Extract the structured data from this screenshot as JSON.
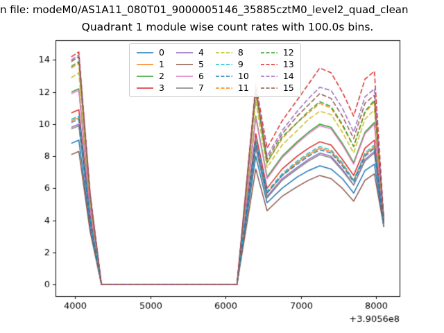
{
  "suptitle": "n file: modeM0/AS1A11_080T01_9000005146_35885cztM0_level2_quad_clean",
  "title": "Quadrant 1 module wise count rates with 100.0s bins.",
  "chart_data": {
    "type": "line",
    "title": "Quadrant 1 module wise count rates with 100.0s bins.",
    "xlabel": "",
    "ylabel": "",
    "x_offset_text": "+3.9056e8",
    "xticks": [
      4000,
      5000,
      6000,
      7000,
      8000
    ],
    "yticks": [
      0,
      2,
      4,
      6,
      8,
      10,
      12,
      14
    ],
    "xlim": [
      3740,
      8310
    ],
    "ylim": [
      -0.73,
      15.23
    ],
    "grid": false,
    "legend_position": "upper center",
    "x": [
      3950,
      4050,
      4200,
      4350,
      6150,
      6400,
      6550,
      6750,
      6950,
      7100,
      7250,
      7400,
      7550,
      7700,
      7850,
      7975,
      8100
    ],
    "series": [
      {
        "name": "0",
        "color": "#1f77b4",
        "dash": "solid",
        "values": [
          8.8,
          9.0,
          3.5,
          0,
          0,
          8.0,
          5.1,
          6.0,
          6.7,
          7.1,
          7.4,
          7.2,
          6.6,
          5.7,
          7.1,
          7.5,
          3.6
        ]
      },
      {
        "name": "1",
        "color": "#ff7f0e",
        "dash": "solid",
        "values": [
          10.2,
          10.4,
          4.1,
          0,
          0,
          9.0,
          5.7,
          6.8,
          7.6,
          8.1,
          8.5,
          8.3,
          7.5,
          6.5,
          8.1,
          8.6,
          3.7
        ]
      },
      {
        "name": "2",
        "color": "#2ca02c",
        "dash": "solid",
        "values": [
          12.0,
          12.2,
          4.8,
          0,
          0,
          10.5,
          6.7,
          8.0,
          8.9,
          9.5,
          10.0,
          9.8,
          8.8,
          7.6,
          9.5,
          10.1,
          3.9
        ]
      },
      {
        "name": "3",
        "color": "#d62728",
        "dash": "solid",
        "values": [
          10.7,
          10.9,
          4.3,
          0,
          0,
          9.4,
          6.0,
          7.2,
          8.0,
          8.5,
          8.9,
          8.7,
          7.8,
          6.8,
          8.5,
          9.0,
          3.8
        ]
      },
      {
        "name": "4",
        "color": "#9467bd",
        "dash": "solid",
        "values": [
          9.8,
          10.0,
          3.9,
          0,
          0,
          8.7,
          5.5,
          6.6,
          7.3,
          7.8,
          8.2,
          8.0,
          7.2,
          6.2,
          7.8,
          8.3,
          3.7
        ]
      },
      {
        "name": "5",
        "color": "#8c564b",
        "dash": "solid",
        "values": [
          8.1,
          8.3,
          3.3,
          0,
          0,
          7.2,
          4.6,
          5.5,
          6.1,
          6.5,
          6.8,
          6.6,
          6.0,
          5.2,
          6.5,
          6.9,
          3.6
        ]
      },
      {
        "name": "6",
        "color": "#e377c2",
        "dash": "solid",
        "values": [
          11.9,
          12.1,
          4.7,
          0,
          0,
          10.4,
          6.6,
          7.9,
          8.8,
          9.4,
          9.9,
          9.7,
          8.7,
          7.5,
          9.4,
          10.0,
          3.9
        ]
      },
      {
        "name": "7",
        "color": "#7f7f7f",
        "dash": "solid",
        "values": [
          9.7,
          9.9,
          3.9,
          0,
          0,
          8.5,
          5.4,
          6.5,
          7.2,
          7.7,
          8.1,
          7.9,
          7.1,
          6.2,
          7.7,
          8.2,
          3.7
        ]
      },
      {
        "name": "8",
        "color": "#bcbd22",
        "dash": "dashed",
        "values": [
          12.9,
          13.2,
          5.2,
          0,
          0,
          11.4,
          7.3,
          8.7,
          9.6,
          10.3,
          10.8,
          10.6,
          9.5,
          8.2,
          10.3,
          10.9,
          4.0
        ]
      },
      {
        "name": "9",
        "color": "#17becf",
        "dash": "dashed",
        "values": [
          10.3,
          10.5,
          4.1,
          0,
          0,
          9.1,
          5.8,
          6.9,
          7.7,
          8.2,
          8.6,
          8.4,
          7.6,
          6.5,
          8.2,
          8.7,
          3.7
        ]
      },
      {
        "name": "10",
        "color": "#1f77b4",
        "dash": "dashed",
        "values": [
          10.1,
          10.3,
          4.0,
          0,
          0,
          8.9,
          5.7,
          6.8,
          7.5,
          8.0,
          8.4,
          8.2,
          7.4,
          6.4,
          8.0,
          8.5,
          3.7
        ]
      },
      {
        "name": "11",
        "color": "#ff7f0e",
        "dash": "dashed",
        "values": [
          13.5,
          13.8,
          5.4,
          0,
          0,
          11.9,
          7.6,
          9.1,
          10.1,
          10.7,
          11.3,
          11.0,
          9.9,
          8.6,
          10.7,
          11.4,
          4.0
        ]
      },
      {
        "name": "12",
        "color": "#2ca02c",
        "dash": "dashed",
        "values": [
          13.6,
          13.9,
          5.5,
          0,
          0,
          12.0,
          7.6,
          9.2,
          10.1,
          10.8,
          11.4,
          11.1,
          10.0,
          8.6,
          10.8,
          11.5,
          4.0
        ]
      },
      {
        "name": "13",
        "color": "#d62728",
        "dash": "dashed",
        "values": [
          14.2,
          14.5,
          5.7,
          0,
          0,
          12.5,
          8.5,
          10.2,
          11.5,
          12.5,
          13.5,
          13.2,
          12.0,
          10.5,
          12.8,
          13.3,
          4.1
        ]
      },
      {
        "name": "14",
        "color": "#9467bd",
        "dash": "dashed",
        "values": [
          14.0,
          14.3,
          5.6,
          0,
          0,
          12.3,
          8.0,
          9.6,
          10.8,
          11.6,
          12.3,
          12.1,
          11.0,
          9.5,
          11.7,
          12.2,
          4.0
        ]
      },
      {
        "name": "15",
        "color": "#8c564b",
        "dash": "dashed",
        "values": [
          13.9,
          14.2,
          5.6,
          0,
          0,
          12.2,
          7.8,
          9.4,
          10.5,
          11.2,
          11.9,
          11.6,
          10.5,
          9.1,
          11.3,
          11.8,
          4.0
        ]
      }
    ]
  }
}
